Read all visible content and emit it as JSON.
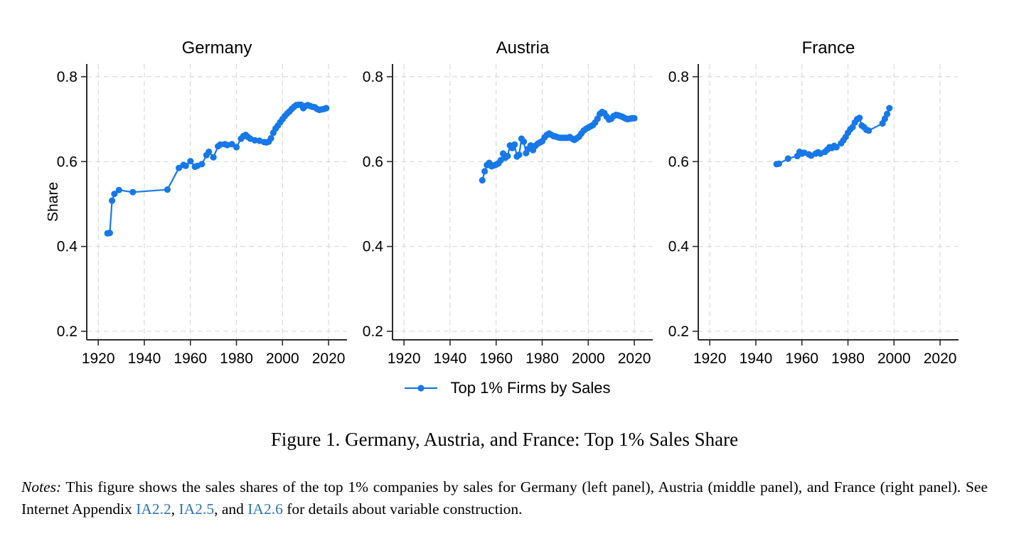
{
  "colors": {
    "accent": "#1778E8",
    "link": "#2E74B5",
    "axis": "#2B2B2B",
    "grid": "#D9D9D9",
    "text": "#000000"
  },
  "legend": {
    "label": "Top 1% Firms by Sales"
  },
  "caption": "Figure 1. Germany, Austria, and France: Top 1% Sales Share",
  "notes_segments": [
    {
      "t": "Notes:",
      "style": "italic"
    },
    {
      "t": " This figure shows the sales shares of the top 1% companies by sales for Germany (left panel), Austria (middle panel), and France (right panel). See Internet Appendix ",
      "style": "normal"
    },
    {
      "t": "IA2.2",
      "style": "link"
    },
    {
      "t": ", ",
      "style": "normal"
    },
    {
      "t": "IA2.5",
      "style": "link"
    },
    {
      "t": ", and ",
      "style": "normal"
    },
    {
      "t": "IA2.6",
      "style": "link"
    },
    {
      "t": " for details about variable construction.",
      "style": "normal"
    }
  ],
  "chart_data": [
    {
      "type": "line",
      "title": "Germany",
      "xlabel": "",
      "ylabel": "Share",
      "xlim": [
        1915,
        2028
      ],
      "ylim": [
        0.18,
        0.83
      ],
      "xticks": [
        1920,
        1940,
        1960,
        1980,
        2000,
        2020
      ],
      "yticks": [
        0.2,
        0.4,
        0.6,
        0.8
      ],
      "grid": true,
      "legend_position": "bottom-center",
      "series": [
        {
          "name": "Top 1% Firms by Sales",
          "points": [
            [
              1924,
              0.431
            ],
            [
              1925,
              0.432
            ],
            [
              1926,
              0.508
            ],
            [
              1927,
              0.524
            ],
            [
              1929,
              0.533
            ],
            [
              1935,
              0.528
            ],
            [
              1950,
              0.534
            ],
            [
              1955,
              0.585
            ],
            [
              1957,
              0.592
            ],
            [
              1958,
              0.59
            ],
            [
              1960,
              0.601
            ],
            [
              1962,
              0.588
            ],
            [
              1963,
              0.59
            ],
            [
              1965,
              0.594
            ],
            [
              1967,
              0.615
            ],
            [
              1968,
              0.623
            ],
            [
              1970,
              0.61
            ],
            [
              1972,
              0.636
            ],
            [
              1973,
              0.64
            ],
            [
              1975,
              0.641
            ],
            [
              1976,
              0.639
            ],
            [
              1978,
              0.641
            ],
            [
              1980,
              0.634
            ],
            [
              1982,
              0.654
            ],
            [
              1983,
              0.66
            ],
            [
              1984,
              0.663
            ],
            [
              1985,
              0.658
            ],
            [
              1986,
              0.654
            ],
            [
              1988,
              0.65
            ],
            [
              1990,
              0.649
            ],
            [
              1992,
              0.646
            ],
            [
              1993,
              0.645
            ],
            [
              1994,
              0.647
            ],
            [
              1995,
              0.655
            ],
            [
              1996,
              0.668
            ],
            [
              1997,
              0.678
            ],
            [
              1998,
              0.685
            ],
            [
              1999,
              0.693
            ],
            [
              2000,
              0.7
            ],
            [
              2001,
              0.707
            ],
            [
              2002,
              0.713
            ],
            [
              2003,
              0.718
            ],
            [
              2004,
              0.724
            ],
            [
              2005,
              0.729
            ],
            [
              2006,
              0.733
            ],
            [
              2007,
              0.734
            ],
            [
              2008,
              0.734
            ],
            [
              2009,
              0.726
            ],
            [
              2010,
              0.731
            ],
            [
              2011,
              0.733
            ],
            [
              2012,
              0.731
            ],
            [
              2013,
              0.729
            ],
            [
              2014,
              0.728
            ],
            [
              2015,
              0.724
            ],
            [
              2016,
              0.722
            ],
            [
              2017,
              0.723
            ],
            [
              2018,
              0.724
            ],
            [
              2019,
              0.726
            ]
          ]
        }
      ]
    },
    {
      "type": "line",
      "title": "Austria",
      "xlabel": "",
      "ylabel": "",
      "xlim": [
        1915,
        2028
      ],
      "ylim": [
        0.18,
        0.83
      ],
      "xticks": [
        1920,
        1940,
        1960,
        1980,
        2000,
        2020
      ],
      "yticks": [
        0.2,
        0.4,
        0.6,
        0.8
      ],
      "grid": true,
      "legend_position": "bottom-center",
      "series": [
        {
          "name": "Top 1% Firms by Sales",
          "points": [
            [
              1954,
              0.556
            ],
            [
              1955,
              0.577
            ],
            [
              1956,
              0.592
            ],
            [
              1957,
              0.597
            ],
            [
              1958,
              0.589
            ],
            [
              1959,
              0.591
            ],
            [
              1960,
              0.593
            ],
            [
              1961,
              0.596
            ],
            [
              1962,
              0.603
            ],
            [
              1963,
              0.619
            ],
            [
              1964,
              0.609
            ],
            [
              1965,
              0.613
            ],
            [
              1966,
              0.638
            ],
            [
              1967,
              0.632
            ],
            [
              1968,
              0.64
            ],
            [
              1969,
              0.612
            ],
            [
              1970,
              0.616
            ],
            [
              1971,
              0.654
            ],
            [
              1972,
              0.647
            ],
            [
              1973,
              0.62
            ],
            [
              1974,
              0.63
            ],
            [
              1975,
              0.638
            ],
            [
              1976,
              0.627
            ],
            [
              1977,
              0.637
            ],
            [
              1978,
              0.642
            ],
            [
              1979,
              0.645
            ],
            [
              1980,
              0.648
            ],
            [
              1981,
              0.657
            ],
            [
              1982,
              0.663
            ],
            [
              1983,
              0.666
            ],
            [
              1984,
              0.663
            ],
            [
              1985,
              0.66
            ],
            [
              1986,
              0.659
            ],
            [
              1987,
              0.657
            ],
            [
              1988,
              0.656
            ],
            [
              1989,
              0.656
            ],
            [
              1990,
              0.656
            ],
            [
              1991,
              0.656
            ],
            [
              1992,
              0.658
            ],
            [
              1993,
              0.654
            ],
            [
              1994,
              0.651
            ],
            [
              1995,
              0.655
            ],
            [
              1996,
              0.659
            ],
            [
              1997,
              0.666
            ],
            [
              1998,
              0.673
            ],
            [
              1999,
              0.677
            ],
            [
              2000,
              0.68
            ],
            [
              2001,
              0.683
            ],
            [
              2002,
              0.686
            ],
            [
              2003,
              0.692
            ],
            [
              2004,
              0.701
            ],
            [
              2005,
              0.712
            ],
            [
              2006,
              0.717
            ],
            [
              2007,
              0.714
            ],
            [
              2008,
              0.706
            ],
            [
              2009,
              0.699
            ],
            [
              2010,
              0.701
            ],
            [
              2011,
              0.707
            ],
            [
              2012,
              0.71
            ],
            [
              2013,
              0.709
            ],
            [
              2014,
              0.707
            ],
            [
              2015,
              0.705
            ],
            [
              2016,
              0.702
            ],
            [
              2017,
              0.7
            ],
            [
              2018,
              0.701
            ],
            [
              2019,
              0.702
            ],
            [
              2020,
              0.702
            ]
          ]
        }
      ]
    },
    {
      "type": "line",
      "title": "France",
      "xlabel": "",
      "ylabel": "",
      "xlim": [
        1915,
        2028
      ],
      "ylim": [
        0.18,
        0.83
      ],
      "xticks": [
        1920,
        1940,
        1960,
        1980,
        2000,
        2020
      ],
      "yticks": [
        0.2,
        0.4,
        0.6,
        0.8
      ],
      "grid": true,
      "legend_position": "bottom-center",
      "series": [
        {
          "name": "Top 1% Firms by Sales",
          "points": [
            [
              1949,
              0.594
            ],
            [
              1950,
              0.595
            ],
            [
              1954,
              0.607
            ],
            [
              1958,
              0.613
            ],
            [
              1959,
              0.623
            ],
            [
              1960,
              0.619
            ],
            [
              1961,
              0.621
            ],
            [
              1963,
              0.617
            ],
            [
              1964,
              0.614
            ],
            [
              1966,
              0.619
            ],
            [
              1967,
              0.622
            ],
            [
              1968,
              0.619
            ],
            [
              1970,
              0.623
            ],
            [
              1971,
              0.628
            ],
            [
              1972,
              0.634
            ],
            [
              1973,
              0.632
            ],
            [
              1974,
              0.637
            ],
            [
              1975,
              0.634
            ],
            [
              1977,
              0.643
            ],
            [
              1978,
              0.65
            ],
            [
              1979,
              0.658
            ],
            [
              1980,
              0.668
            ],
            [
              1981,
              0.676
            ],
            [
              1982,
              0.681
            ],
            [
              1983,
              0.692
            ],
            [
              1984,
              0.7
            ],
            [
              1985,
              0.703
            ],
            [
              1986,
              0.685
            ],
            [
              1987,
              0.681
            ],
            [
              1988,
              0.675
            ],
            [
              1989,
              0.673
            ],
            [
              1995,
              0.69
            ],
            [
              1996,
              0.701
            ],
            [
              1997,
              0.712
            ],
            [
              1998,
              0.726
            ]
          ]
        }
      ]
    }
  ]
}
